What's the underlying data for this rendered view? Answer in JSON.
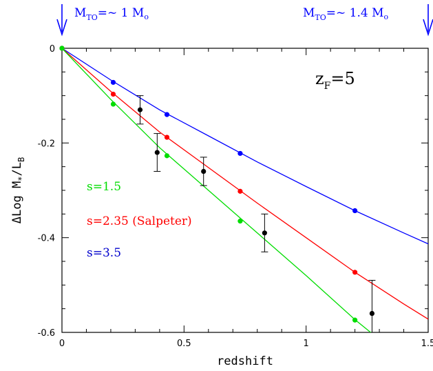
{
  "chart_data": {
    "type": "line",
    "title": "",
    "xlabel": "redshift",
    "ylabel": "ΔLog M*/LB",
    "ylabel_parts": {
      "prefix": "ΔLog  M",
      "sub1": "*",
      "mid": "/L",
      "sub2": "B"
    },
    "xlim": [
      0,
      1.5
    ],
    "ylim": [
      -0.6,
      0
    ],
    "grid": false,
    "x_tick_labels": [
      "0",
      "0.5",
      "1",
      "1.5"
    ],
    "x_tick_values": [
      0,
      0.5,
      1,
      1.5
    ],
    "y_tick_labels": [
      "0",
      "-0.2",
      "-0.4",
      "-0.6"
    ],
    "y_tick_values": [
      0,
      -0.2,
      -0.4,
      -0.6
    ],
    "series": [
      {
        "name": "s=3.5",
        "color": "#0000ff",
        "line": {
          "x": [
            0,
            0.2,
            0.4,
            0.6,
            0.8,
            1.0,
            1.2,
            1.4,
            1.5
          ],
          "y": [
            0,
            -0.067,
            -0.13,
            -0.185,
            -0.24,
            -0.292,
            -0.343,
            -0.39,
            -0.413
          ]
        },
        "points": {
          "x": [
            0,
            0.21,
            0.43,
            0.73,
            1.2
          ],
          "y": [
            0,
            -0.072,
            -0.14,
            -0.222,
            -0.343
          ]
        }
      },
      {
        "name": "s=2.35 (Salpeter)",
        "color": "#ff0000",
        "line": {
          "x": [
            0,
            0.2,
            0.4,
            0.6,
            0.8,
            1.0,
            1.2,
            1.4,
            1.5
          ],
          "y": [
            0,
            -0.091,
            -0.177,
            -0.252,
            -0.327,
            -0.4,
            -0.473,
            -0.54,
            -0.572
          ]
        },
        "points": {
          "x": [
            0,
            0.21,
            0.43,
            0.73,
            1.2
          ],
          "y": [
            0,
            -0.097,
            -0.188,
            -0.302,
            -0.473
          ]
        }
      },
      {
        "name": "s=1.5",
        "color": "#00dd00",
        "line": {
          "x": [
            0,
            0.2,
            0.4,
            0.6,
            0.8,
            1.0,
            1.2,
            1.3
          ],
          "y": [
            0,
            -0.108,
            -0.21,
            -0.3,
            -0.39,
            -0.48,
            -0.573,
            -0.615
          ]
        },
        "points": {
          "x": [
            0,
            0.21,
            0.43,
            0.73,
            1.2
          ],
          "y": [
            0,
            -0.118,
            -0.227,
            -0.365,
            -0.574
          ]
        }
      }
    ],
    "observations": {
      "name": "",
      "color": "#000000",
      "x": [
        0.32,
        0.39,
        0.58,
        0.83,
        1.27
      ],
      "y": [
        -0.13,
        -0.22,
        -0.26,
        -0.39,
        -0.56
      ],
      "yerr": [
        0.03,
        0.04,
        0.03,
        0.04,
        0.07
      ]
    },
    "annotations": {
      "zf_main": "z",
      "zf_sub": "F",
      "zf_value": "=5",
      "legend_green": "s=1.5",
      "legend_red": "s=2.35 (Salpeter)",
      "legend_blue": "s=3.5",
      "turnoff_left_main": "M",
      "turnoff_left_sub": "TO",
      "turnoff_left_value": "=~  1  M",
      "turnoff_left_sun": "o",
      "turnoff_right_main": "M",
      "turnoff_right_sub": "TO",
      "turnoff_right_value": "=~  1.4  M",
      "turnoff_right_sun": "o"
    }
  }
}
